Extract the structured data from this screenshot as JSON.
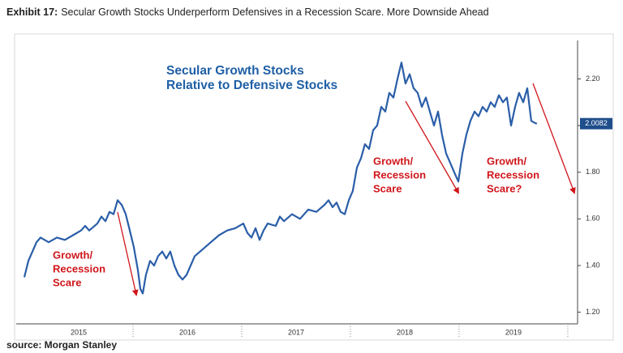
{
  "chart_data": {
    "type": "line",
    "title_label": "Exhibit 17:",
    "title": "Secular Growth Stocks Underperform Defensives in a Recession Scare. More Downside Ahead",
    "source": "source: Morgan Stanley",
    "annotations": [
      {
        "lines": [
          "Secular Growth Stocks",
          "Relative to Defensive Stocks"
        ],
        "color": "#1f5fa6"
      },
      {
        "lines": [
          "Growth/",
          "Recession",
          "Scare"
        ],
        "color": "#d0161b"
      },
      {
        "lines": [
          "Growth/",
          "Recession",
          "Scare"
        ],
        "color": "#d0161b"
      },
      {
        "lines": [
          "Growth/",
          "Recession",
          "Scare?"
        ],
        "color": "#d0161b"
      }
    ],
    "xlim": [
      2015,
      2020.09
    ],
    "xticks": [
      {
        "value": 2015.5,
        "label": "2015"
      },
      {
        "value": 2016.5,
        "label": "2016"
      },
      {
        "value": 2017.5,
        "label": "2017"
      },
      {
        "value": 2018.5,
        "label": "2018"
      },
      {
        "value": 2019.5,
        "label": "2019"
      }
    ],
    "ylim": [
      1.15,
      2.33
    ],
    "yticks": [
      {
        "value": 1.2,
        "label": "1.20"
      },
      {
        "value": 1.4,
        "label": "1.40"
      },
      {
        "value": 1.6,
        "label": "1.60"
      },
      {
        "value": 1.8,
        "label": "1.80"
      },
      {
        "value": 2.0,
        "label": "2.00"
      },
      {
        "value": 2.2,
        "label": "2.20"
      }
    ],
    "last_value_label": {
      "value": 2.0082,
      "label": "2.0082"
    },
    "series": [
      {
        "color": "#2a5ea8",
        "x": [
          2015.0,
          2015.037,
          2015.075,
          2015.112,
          2015.149,
          2015.224,
          2015.299,
          2015.373,
          2015.448,
          2015.522,
          2015.56,
          2015.597,
          2015.672,
          2015.709,
          2015.746,
          2015.784,
          2015.821,
          2015.858,
          2015.896,
          2015.933,
          2015.97,
          2016.007,
          2016.045,
          2016.067,
          2016.09,
          2016.119,
          2016.157,
          2016.194,
          2016.231,
          2016.269,
          2016.306,
          2016.343,
          2016.381,
          2016.418,
          2016.455,
          2016.493,
          2016.53,
          2016.567,
          2016.642,
          2016.716,
          2016.791,
          2016.866,
          2016.94,
          2017.015,
          2017.052,
          2017.09,
          2017.127,
          2017.164,
          2017.201,
          2017.239,
          2017.313,
          2017.351,
          2017.388,
          2017.463,
          2017.537,
          2017.612,
          2017.687,
          2017.761,
          2017.799,
          2017.836,
          2017.873,
          2017.91,
          2017.948,
          2017.985,
          2018.022,
          2018.06,
          2018.097,
          2018.134,
          2018.172,
          2018.209,
          2018.246,
          2018.284,
          2018.321,
          2018.358,
          2018.396,
          2018.433,
          2018.47,
          2018.507,
          2018.545,
          2018.582,
          2018.619,
          2018.657,
          2018.694,
          2018.731,
          2018.769,
          2018.806,
          2018.843,
          2018.881,
          2018.918,
          2018.955,
          2018.993,
          2019.03,
          2019.067,
          2019.104,
          2019.142,
          2019.179,
          2019.216,
          2019.254,
          2019.291,
          2019.328,
          2019.366,
          2019.403,
          2019.44,
          2019.478,
          2019.515,
          2019.552,
          2019.59,
          2019.627,
          2019.664,
          2019.701,
          2019.716
        ],
        "values": [
          1.35,
          1.42,
          1.46,
          1.5,
          1.52,
          1.5,
          1.52,
          1.51,
          1.53,
          1.55,
          1.57,
          1.55,
          1.58,
          1.61,
          1.59,
          1.63,
          1.62,
          1.68,
          1.66,
          1.62,
          1.55,
          1.48,
          1.38,
          1.3,
          1.28,
          1.36,
          1.42,
          1.4,
          1.44,
          1.46,
          1.43,
          1.46,
          1.4,
          1.36,
          1.34,
          1.36,
          1.4,
          1.44,
          1.47,
          1.5,
          1.53,
          1.55,
          1.56,
          1.58,
          1.54,
          1.52,
          1.56,
          1.51,
          1.55,
          1.58,
          1.57,
          1.61,
          1.59,
          1.62,
          1.6,
          1.64,
          1.63,
          1.66,
          1.68,
          1.65,
          1.67,
          1.63,
          1.62,
          1.68,
          1.72,
          1.82,
          1.86,
          1.92,
          1.9,
          1.98,
          2.0,
          2.08,
          2.06,
          2.14,
          2.12,
          2.2,
          2.27,
          2.18,
          2.22,
          2.16,
          2.14,
          2.08,
          2.12,
          2.06,
          2.0,
          2.06,
          1.96,
          1.88,
          1.84,
          1.8,
          1.76,
          1.88,
          1.96,
          2.02,
          2.06,
          2.04,
          2.08,
          2.06,
          2.1,
          2.08,
          2.13,
          2.1,
          2.12,
          2.0,
          2.08,
          2.14,
          2.1,
          2.16,
          2.02,
          2.01,
          2.0082
        ]
      }
    ]
  }
}
